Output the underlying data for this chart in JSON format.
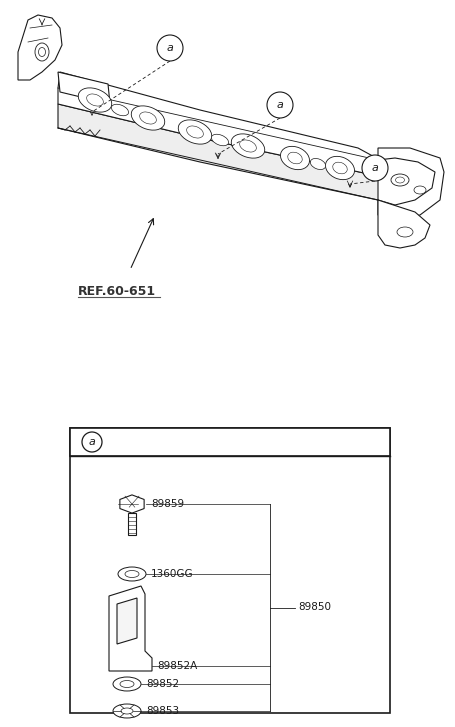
{
  "bg_color": "#ffffff",
  "lc": "#1a1a1a",
  "gray": "#888888",
  "label_a": "a",
  "ref_text": "REF.60-651",
  "parts": {
    "89859": "89859",
    "1360GG": "1360GG",
    "89850": "89850",
    "89852A": "89852A",
    "89852": "89852",
    "89853": "89853"
  },
  "figsize": [
    4.56,
    7.27
  ],
  "dpi": 100
}
